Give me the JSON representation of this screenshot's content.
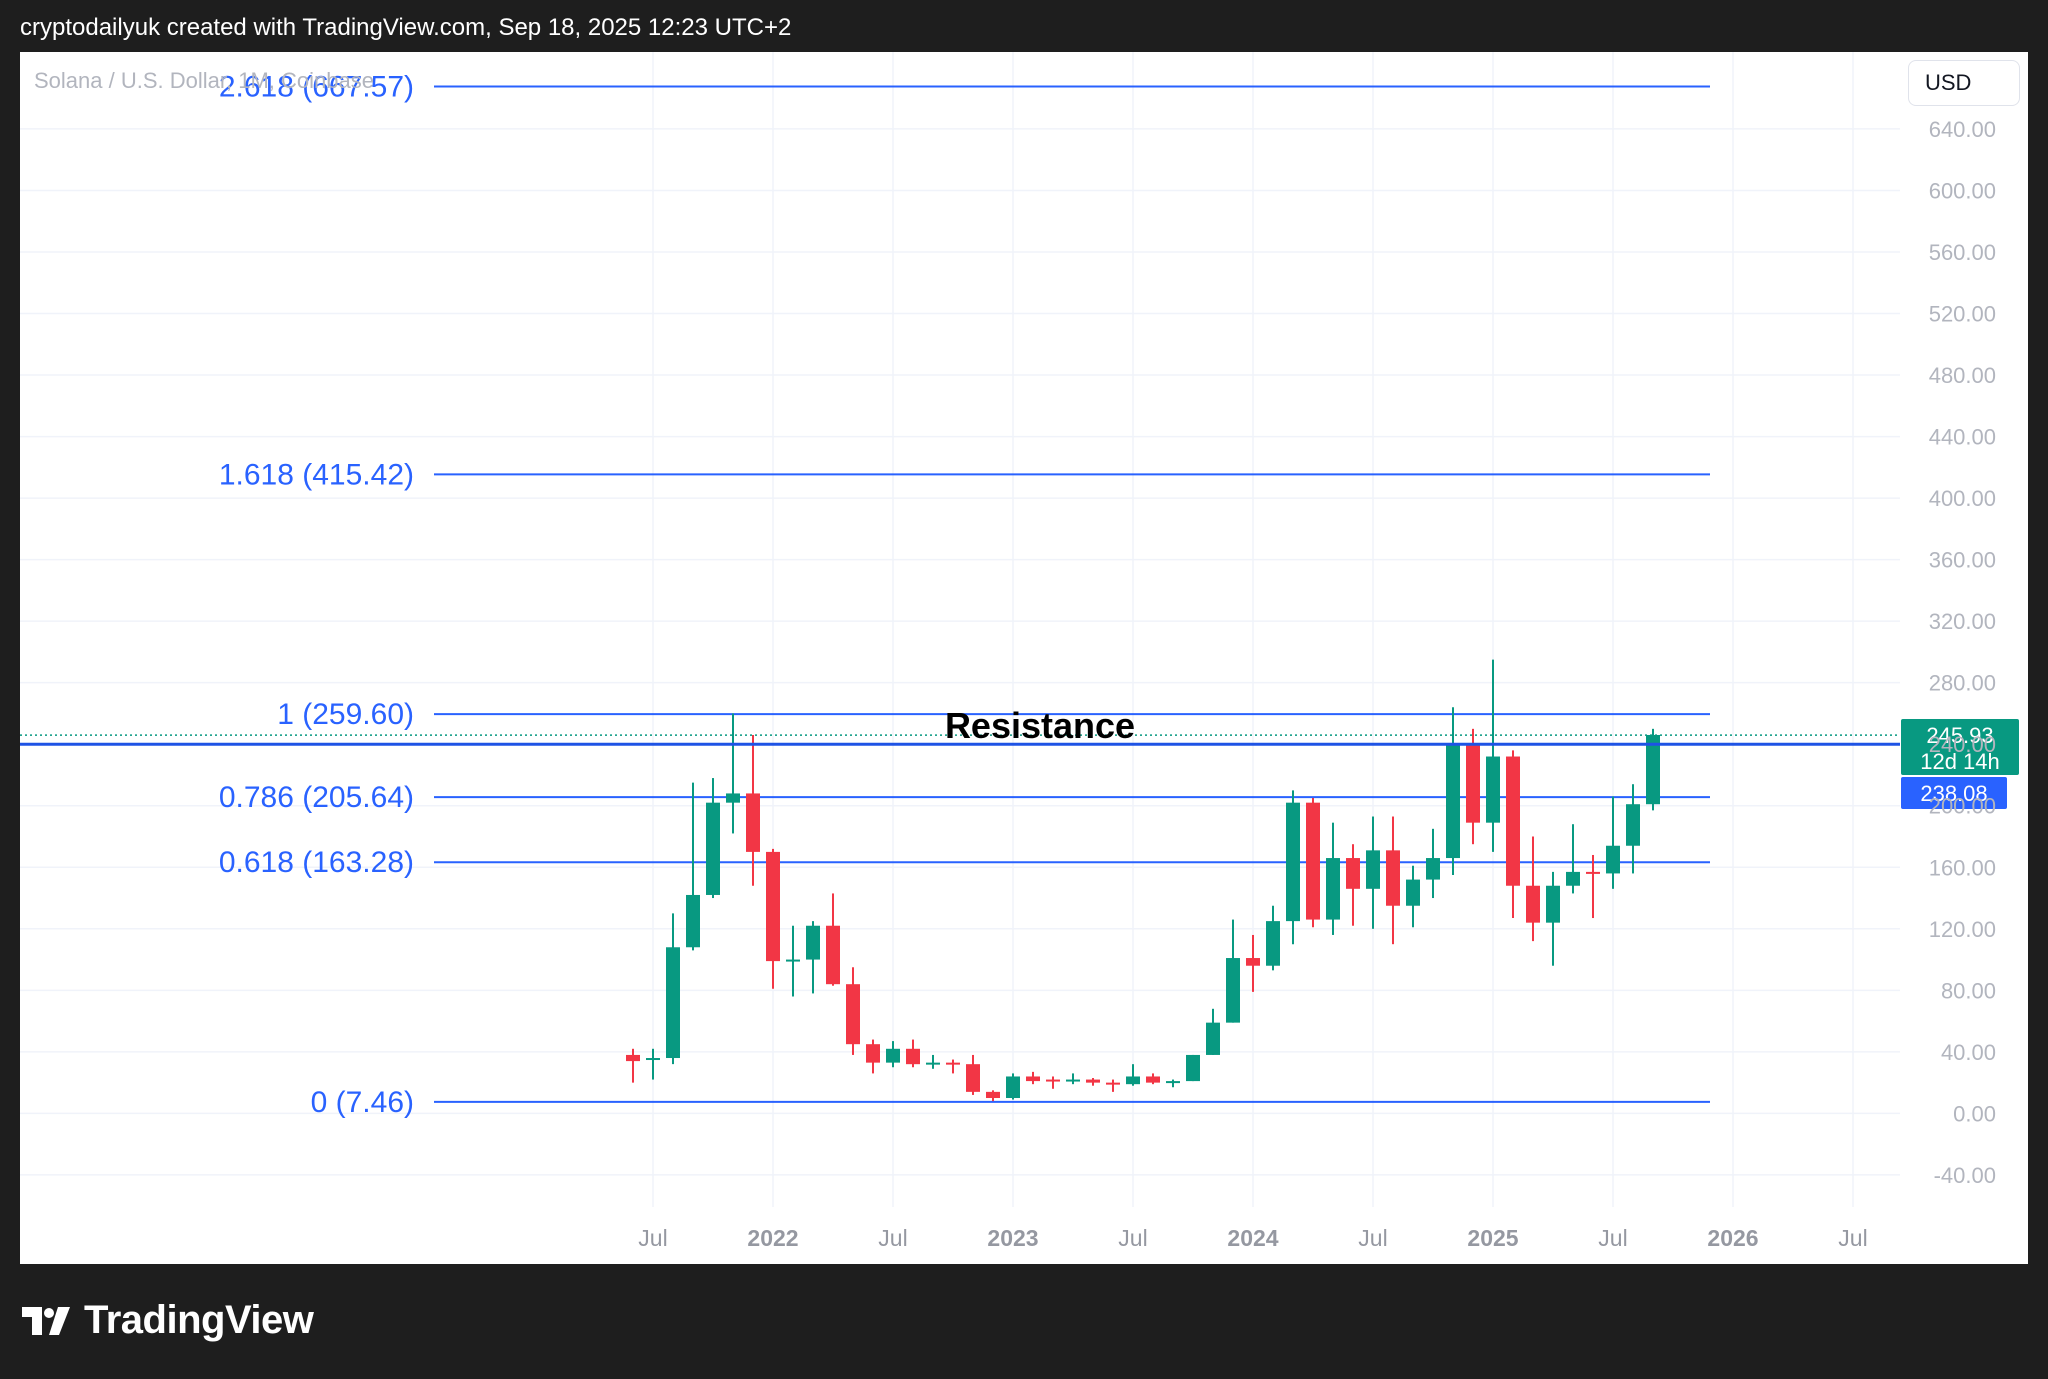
{
  "header": {
    "credit": "cryptodailyuk created with TradingView.com, Sep 18, 2025 12:23 UTC+2"
  },
  "symbol_title": "Solana / U.S. Dollar, 1M, Coinbase",
  "currency_button": "USD",
  "footer": {
    "brand": "TradingView"
  },
  "colors": {
    "up": "#089981",
    "down": "#f23645",
    "fib": "#2962ff",
    "grid": "#f0f3fa",
    "axis_text": "#b2b5be",
    "time_label": "#9598a1"
  },
  "chart_data": {
    "type": "candlestick",
    "timeframe": "1M",
    "exchange": "Coinbase",
    "y_axis": {
      "ticks": [
        "-40.00",
        "0.00",
        "40.00",
        "80.00",
        "120.00",
        "160.00",
        "200.00",
        "240.00",
        "280.00",
        "320.00",
        "360.00",
        "400.00",
        "440.00",
        "480.00",
        "520.00",
        "560.00",
        "600.00",
        "640.00"
      ],
      "range": [
        -68,
        690
      ]
    },
    "x_axis": {
      "ticks": [
        {
          "label": "Jul",
          "month_index": 6,
          "bold": false
        },
        {
          "label": "2022",
          "month_index": 12,
          "bold": true
        },
        {
          "label": "Jul",
          "month_index": 18,
          "bold": false
        },
        {
          "label": "2023",
          "month_index": 24,
          "bold": true
        },
        {
          "label": "Jul",
          "month_index": 30,
          "bold": false
        },
        {
          "label": "2024",
          "month_index": 36,
          "bold": true
        },
        {
          "label": "Jul",
          "month_index": 42,
          "bold": false
        },
        {
          "label": "2025",
          "month_index": 48,
          "bold": true
        },
        {
          "label": "Jul",
          "month_index": 54,
          "bold": false
        },
        {
          "label": "2026",
          "month_index": 60,
          "bold": true
        },
        {
          "label": "Jul",
          "month_index": 66,
          "bold": false
        }
      ],
      "month_index_origin": "2021-01"
    },
    "fib_levels": [
      {
        "label": "2.618 (667.57)",
        "value": 667.57
      },
      {
        "label": "1.618 (415.42)",
        "value": 415.42
      },
      {
        "label": "1 (259.60)",
        "value": 259.6
      },
      {
        "label": "0.786 (205.64)",
        "value": 205.64
      },
      {
        "label": "0.618 (163.28)",
        "value": 163.28
      },
      {
        "label": "0 (7.46)",
        "value": 7.46
      }
    ],
    "annotation": {
      "text": "Resistance",
      "value": 240
    },
    "resistance_value": 240,
    "last_price": {
      "value": "245.93",
      "countdown": "12d 14h"
    },
    "reference_price": {
      "value": "238.08"
    },
    "candles": [
      {
        "t": "2021-06",
        "o": 38,
        "h": 42,
        "l": 20,
        "c": 34
      },
      {
        "t": "2021-07",
        "o": 35,
        "h": 42,
        "l": 22,
        "c": 36
      },
      {
        "t": "2021-08",
        "o": 36,
        "h": 130,
        "l": 32,
        "c": 108
      },
      {
        "t": "2021-09",
        "o": 108,
        "h": 215,
        "l": 106,
        "c": 142
      },
      {
        "t": "2021-10",
        "o": 142,
        "h": 218,
        "l": 140,
        "c": 202
      },
      {
        "t": "2021-11",
        "o": 202,
        "h": 260,
        "l": 182,
        "c": 208
      },
      {
        "t": "2021-12",
        "o": 208,
        "h": 246,
        "l": 148,
        "c": 170
      },
      {
        "t": "2022-01",
        "o": 170,
        "h": 172,
        "l": 81,
        "c": 99
      },
      {
        "t": "2022-02",
        "o": 99,
        "h": 122,
        "l": 76,
        "c": 100
      },
      {
        "t": "2022-03",
        "o": 100,
        "h": 125,
        "l": 78,
        "c": 122
      },
      {
        "t": "2022-04",
        "o": 122,
        "h": 143,
        "l": 83,
        "c": 84
      },
      {
        "t": "2022-05",
        "o": 84,
        "h": 95,
        "l": 38,
        "c": 45
      },
      {
        "t": "2022-06",
        "o": 45,
        "h": 48,
        "l": 26,
        "c": 33
      },
      {
        "t": "2022-07",
        "o": 33,
        "h": 47,
        "l": 30,
        "c": 42
      },
      {
        "t": "2022-08",
        "o": 42,
        "h": 48,
        "l": 30,
        "c": 32
      },
      {
        "t": "2022-09",
        "o": 32,
        "h": 38,
        "l": 29,
        "c": 33
      },
      {
        "t": "2022-10",
        "o": 33,
        "h": 35,
        "l": 26,
        "c": 32
      },
      {
        "t": "2022-11",
        "o": 32,
        "h": 38,
        "l": 12,
        "c": 14
      },
      {
        "t": "2022-12",
        "o": 14,
        "h": 15,
        "l": 8,
        "c": 10
      },
      {
        "t": "2023-01",
        "o": 10,
        "h": 26,
        "l": 9,
        "c": 24
      },
      {
        "t": "2023-02",
        "o": 24,
        "h": 27,
        "l": 19,
        "c": 21
      },
      {
        "t": "2023-03",
        "o": 22,
        "h": 24,
        "l": 16,
        "c": 21
      },
      {
        "t": "2023-04",
        "o": 21,
        "h": 26,
        "l": 19,
        "c": 22
      },
      {
        "t": "2023-05",
        "o": 22,
        "h": 23,
        "l": 18,
        "c": 20
      },
      {
        "t": "2023-06",
        "o": 20,
        "h": 22,
        "l": 14,
        "c": 19
      },
      {
        "t": "2023-07",
        "o": 19,
        "h": 32,
        "l": 18,
        "c": 24
      },
      {
        "t": "2023-08",
        "o": 24,
        "h": 26,
        "l": 19,
        "c": 20
      },
      {
        "t": "2023-09",
        "o": 20,
        "h": 22,
        "l": 17,
        "c": 21
      },
      {
        "t": "2023-10",
        "o": 21,
        "h": 38,
        "l": 21,
        "c": 38
      },
      {
        "t": "2023-11",
        "o": 38,
        "h": 68,
        "l": 38,
        "c": 59
      },
      {
        "t": "2023-12",
        "o": 59,
        "h": 126,
        "l": 59,
        "c": 101
      },
      {
        "t": "2024-01",
        "o": 101,
        "h": 116,
        "l": 79,
        "c": 96
      },
      {
        "t": "2024-02",
        "o": 96,
        "h": 135,
        "l": 93,
        "c": 125
      },
      {
        "t": "2024-03",
        "o": 125,
        "h": 210,
        "l": 110,
        "c": 202
      },
      {
        "t": "2024-04",
        "o": 202,
        "h": 205,
        "l": 121,
        "c": 126
      },
      {
        "t": "2024-05",
        "o": 126,
        "h": 189,
        "l": 116,
        "c": 166
      },
      {
        "t": "2024-06",
        "o": 166,
        "h": 175,
        "l": 122,
        "c": 146
      },
      {
        "t": "2024-07",
        "o": 146,
        "h": 193,
        "l": 120,
        "c": 171
      },
      {
        "t": "2024-08",
        "o": 171,
        "h": 193,
        "l": 110,
        "c": 135
      },
      {
        "t": "2024-09",
        "o": 135,
        "h": 161,
        "l": 121,
        "c": 152
      },
      {
        "t": "2024-10",
        "o": 152,
        "h": 185,
        "l": 140,
        "c": 166
      },
      {
        "t": "2024-11",
        "o": 166,
        "h": 264,
        "l": 155,
        "c": 240
      },
      {
        "t": "2024-12",
        "o": 240,
        "h": 250,
        "l": 175,
        "c": 189
      },
      {
        "t": "2025-01",
        "o": 189,
        "h": 295,
        "l": 170,
        "c": 232
      },
      {
        "t": "2025-02",
        "o": 232,
        "h": 236,
        "l": 127,
        "c": 148
      },
      {
        "t": "2025-03",
        "o": 148,
        "h": 180,
        "l": 112,
        "c": 124
      },
      {
        "t": "2025-04",
        "o": 124,
        "h": 157,
        "l": 96,
        "c": 148
      },
      {
        "t": "2025-05",
        "o": 148,
        "h": 188,
        "l": 143,
        "c": 157
      },
      {
        "t": "2025-06",
        "o": 157,
        "h": 168,
        "l": 127,
        "c": 156
      },
      {
        "t": "2025-07",
        "o": 156,
        "h": 206,
        "l": 146,
        "c": 174
      },
      {
        "t": "2025-08",
        "o": 174,
        "h": 214,
        "l": 156,
        "c": 201
      },
      {
        "t": "2025-09",
        "o": 201,
        "h": 250,
        "l": 197,
        "c": 246
      }
    ]
  }
}
